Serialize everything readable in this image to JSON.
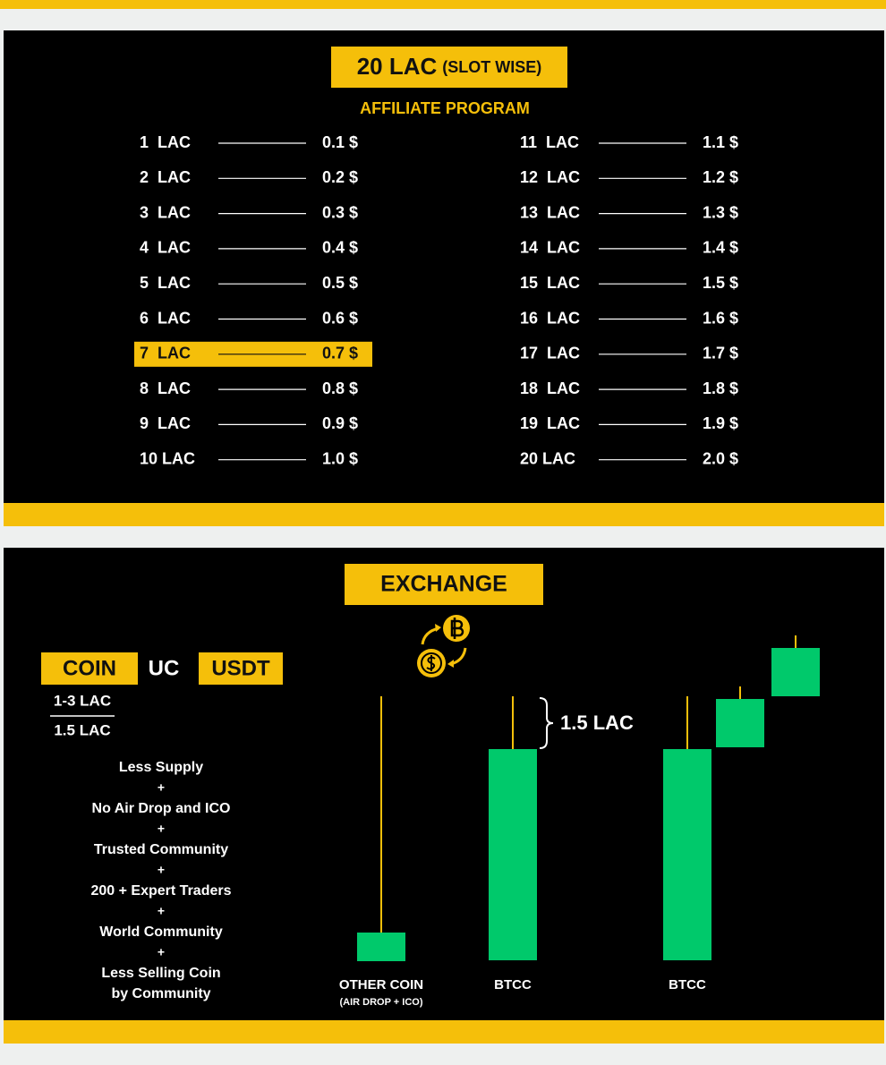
{
  "slot": {
    "title": "20 LAC",
    "title_note": "(SLOT WISE)",
    "subtitle": "AFFILIATE PROGRAM",
    "rows": [
      {
        "slot": "1  LAC",
        "reward": "0.1 $"
      },
      {
        "slot": "2  LAC",
        "reward": "0.2 $"
      },
      {
        "slot": "3  LAC",
        "reward": "0.3 $"
      },
      {
        "slot": "4  LAC",
        "reward": "0.4 $"
      },
      {
        "slot": "5  LAC",
        "reward": "0.5 $"
      },
      {
        "slot": "6  LAC",
        "reward": "0.6 $"
      },
      {
        "slot": "7  LAC",
        "reward": "0.7 $",
        "highlighted": true
      },
      {
        "slot": "8  LAC",
        "reward": "0.8 $"
      },
      {
        "slot": "9  LAC",
        "reward": "0.9 $"
      },
      {
        "slot": "10 LAC",
        "reward": "1.0 $"
      },
      {
        "slot": "11  LAC",
        "reward": "1.1 $"
      },
      {
        "slot": "12  LAC",
        "reward": "1.2 $"
      },
      {
        "slot": "13  LAC",
        "reward": "1.3 $"
      },
      {
        "slot": "14  LAC",
        "reward": "1.4 $"
      },
      {
        "slot": "15  LAC",
        "reward": "1.5 $"
      },
      {
        "slot": "16  LAC",
        "reward": "1.6 $"
      },
      {
        "slot": "17  LAC",
        "reward": "1.7 $"
      },
      {
        "slot": "18  LAC",
        "reward": "1.8 $"
      },
      {
        "slot": "19  LAC",
        "reward": "1.9 $"
      },
      {
        "slot": "20 LAC",
        "reward": "2.0 $"
      }
    ]
  },
  "exchange": {
    "title": "EXCHANGE",
    "coin": "COIN",
    "uc": "UC",
    "usdt": "USDT",
    "ratio_top": "1-3 LAC",
    "ratio_bottom": "1.5 LAC",
    "reasons": [
      "Less Supply",
      "No Air Drop and ICO",
      "Trusted Community",
      "200 + Expert Traders",
      "World Community",
      "Less Selling Coin",
      "by Community"
    ],
    "separator": "+",
    "gap_label": "1.5 LAC",
    "candle_labels": [
      "OTHER COIN",
      "(AIR DROP + ICO)",
      "BTCC",
      "BTCC"
    ]
  }
}
